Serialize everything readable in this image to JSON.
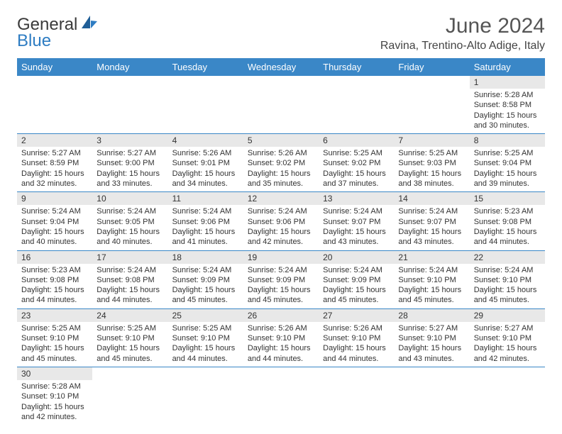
{
  "logo": {
    "text1": "General",
    "text2": "Blue"
  },
  "title": "June 2024",
  "location": "Ravina, Trentino-Alto Adige, Italy",
  "colors": {
    "header_bg": "#3a87c7",
    "header_fg": "#ffffff",
    "daynum_bg": "#e8e8e8",
    "border": "#3a87c7",
    "logo_blue": "#2d7cc2"
  },
  "weekdays": [
    "Sunday",
    "Monday",
    "Tuesday",
    "Wednesday",
    "Thursday",
    "Friday",
    "Saturday"
  ],
  "weeks": [
    [
      {
        "n": "",
        "lines": []
      },
      {
        "n": "",
        "lines": []
      },
      {
        "n": "",
        "lines": []
      },
      {
        "n": "",
        "lines": []
      },
      {
        "n": "",
        "lines": []
      },
      {
        "n": "",
        "lines": []
      },
      {
        "n": "1",
        "lines": [
          "Sunrise: 5:28 AM",
          "Sunset: 8:58 PM",
          "Daylight: 15 hours and 30 minutes."
        ]
      }
    ],
    [
      {
        "n": "2",
        "lines": [
          "Sunrise: 5:27 AM",
          "Sunset: 8:59 PM",
          "Daylight: 15 hours and 32 minutes."
        ]
      },
      {
        "n": "3",
        "lines": [
          "Sunrise: 5:27 AM",
          "Sunset: 9:00 PM",
          "Daylight: 15 hours and 33 minutes."
        ]
      },
      {
        "n": "4",
        "lines": [
          "Sunrise: 5:26 AM",
          "Sunset: 9:01 PM",
          "Daylight: 15 hours and 34 minutes."
        ]
      },
      {
        "n": "5",
        "lines": [
          "Sunrise: 5:26 AM",
          "Sunset: 9:02 PM",
          "Daylight: 15 hours and 35 minutes."
        ]
      },
      {
        "n": "6",
        "lines": [
          "Sunrise: 5:25 AM",
          "Sunset: 9:02 PM",
          "Daylight: 15 hours and 37 minutes."
        ]
      },
      {
        "n": "7",
        "lines": [
          "Sunrise: 5:25 AM",
          "Sunset: 9:03 PM",
          "Daylight: 15 hours and 38 minutes."
        ]
      },
      {
        "n": "8",
        "lines": [
          "Sunrise: 5:25 AM",
          "Sunset: 9:04 PM",
          "Daylight: 15 hours and 39 minutes."
        ]
      }
    ],
    [
      {
        "n": "9",
        "lines": [
          "Sunrise: 5:24 AM",
          "Sunset: 9:04 PM",
          "Daylight: 15 hours and 40 minutes."
        ]
      },
      {
        "n": "10",
        "lines": [
          "Sunrise: 5:24 AM",
          "Sunset: 9:05 PM",
          "Daylight: 15 hours and 40 minutes."
        ]
      },
      {
        "n": "11",
        "lines": [
          "Sunrise: 5:24 AM",
          "Sunset: 9:06 PM",
          "Daylight: 15 hours and 41 minutes."
        ]
      },
      {
        "n": "12",
        "lines": [
          "Sunrise: 5:24 AM",
          "Sunset: 9:06 PM",
          "Daylight: 15 hours and 42 minutes."
        ]
      },
      {
        "n": "13",
        "lines": [
          "Sunrise: 5:24 AM",
          "Sunset: 9:07 PM",
          "Daylight: 15 hours and 43 minutes."
        ]
      },
      {
        "n": "14",
        "lines": [
          "Sunrise: 5:24 AM",
          "Sunset: 9:07 PM",
          "Daylight: 15 hours and 43 minutes."
        ]
      },
      {
        "n": "15",
        "lines": [
          "Sunrise: 5:23 AM",
          "Sunset: 9:08 PM",
          "Daylight: 15 hours and 44 minutes."
        ]
      }
    ],
    [
      {
        "n": "16",
        "lines": [
          "Sunrise: 5:23 AM",
          "Sunset: 9:08 PM",
          "Daylight: 15 hours and 44 minutes."
        ]
      },
      {
        "n": "17",
        "lines": [
          "Sunrise: 5:24 AM",
          "Sunset: 9:08 PM",
          "Daylight: 15 hours and 44 minutes."
        ]
      },
      {
        "n": "18",
        "lines": [
          "Sunrise: 5:24 AM",
          "Sunset: 9:09 PM",
          "Daylight: 15 hours and 45 minutes."
        ]
      },
      {
        "n": "19",
        "lines": [
          "Sunrise: 5:24 AM",
          "Sunset: 9:09 PM",
          "Daylight: 15 hours and 45 minutes."
        ]
      },
      {
        "n": "20",
        "lines": [
          "Sunrise: 5:24 AM",
          "Sunset: 9:09 PM",
          "Daylight: 15 hours and 45 minutes."
        ]
      },
      {
        "n": "21",
        "lines": [
          "Sunrise: 5:24 AM",
          "Sunset: 9:10 PM",
          "Daylight: 15 hours and 45 minutes."
        ]
      },
      {
        "n": "22",
        "lines": [
          "Sunrise: 5:24 AM",
          "Sunset: 9:10 PM",
          "Daylight: 15 hours and 45 minutes."
        ]
      }
    ],
    [
      {
        "n": "23",
        "lines": [
          "Sunrise: 5:25 AM",
          "Sunset: 9:10 PM",
          "Daylight: 15 hours and 45 minutes."
        ]
      },
      {
        "n": "24",
        "lines": [
          "Sunrise: 5:25 AM",
          "Sunset: 9:10 PM",
          "Daylight: 15 hours and 45 minutes."
        ]
      },
      {
        "n": "25",
        "lines": [
          "Sunrise: 5:25 AM",
          "Sunset: 9:10 PM",
          "Daylight: 15 hours and 44 minutes."
        ]
      },
      {
        "n": "26",
        "lines": [
          "Sunrise: 5:26 AM",
          "Sunset: 9:10 PM",
          "Daylight: 15 hours and 44 minutes."
        ]
      },
      {
        "n": "27",
        "lines": [
          "Sunrise: 5:26 AM",
          "Sunset: 9:10 PM",
          "Daylight: 15 hours and 44 minutes."
        ]
      },
      {
        "n": "28",
        "lines": [
          "Sunrise: 5:27 AM",
          "Sunset: 9:10 PM",
          "Daylight: 15 hours and 43 minutes."
        ]
      },
      {
        "n": "29",
        "lines": [
          "Sunrise: 5:27 AM",
          "Sunset: 9:10 PM",
          "Daylight: 15 hours and 42 minutes."
        ]
      }
    ],
    [
      {
        "n": "30",
        "lines": [
          "Sunrise: 5:28 AM",
          "Sunset: 9:10 PM",
          "Daylight: 15 hours and 42 minutes."
        ]
      },
      {
        "n": "",
        "lines": []
      },
      {
        "n": "",
        "lines": []
      },
      {
        "n": "",
        "lines": []
      },
      {
        "n": "",
        "lines": []
      },
      {
        "n": "",
        "lines": []
      },
      {
        "n": "",
        "lines": []
      }
    ]
  ]
}
